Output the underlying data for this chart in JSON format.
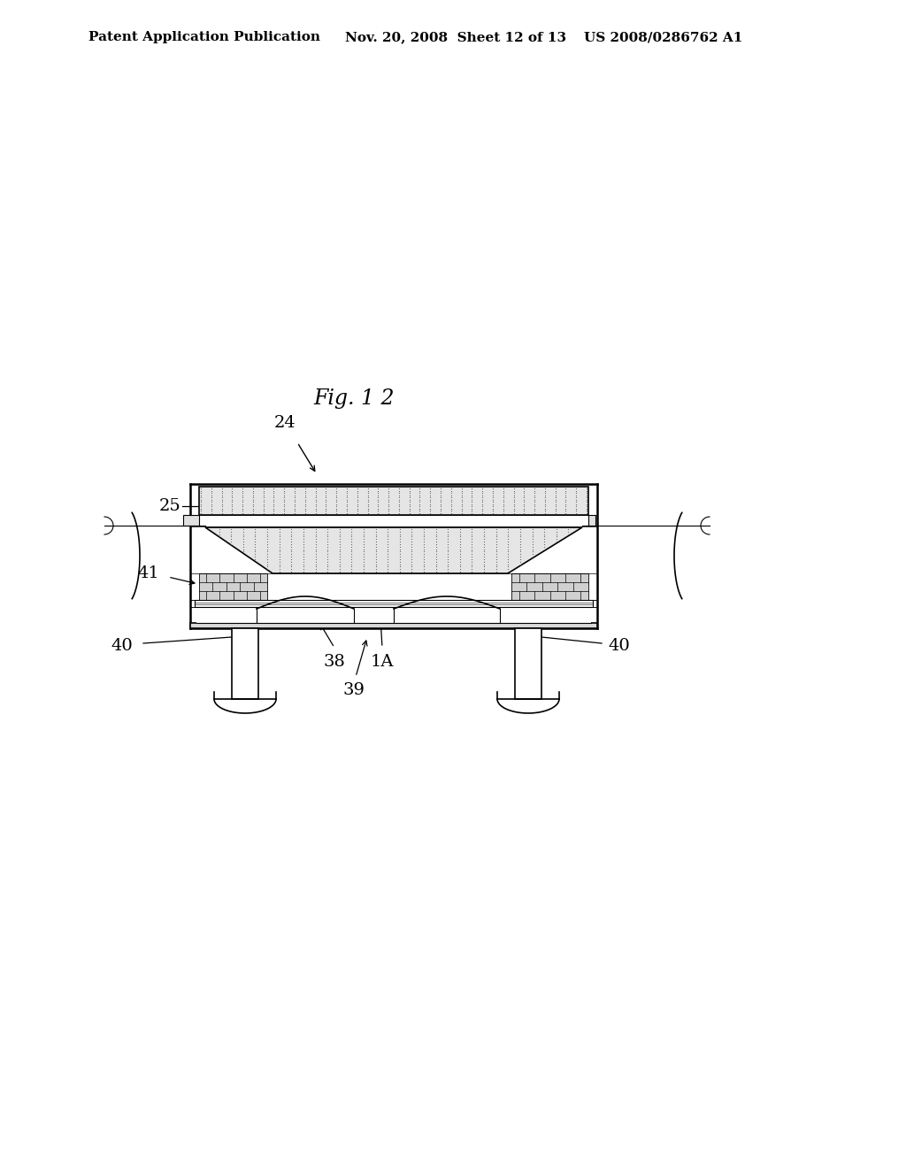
{
  "bg_color": "#ffffff",
  "header_left": "Patent Application Publication",
  "header_mid": "Nov. 20, 2008  Sheet 12 of 13",
  "header_right": "US 2008/0286762 A1",
  "fig_label": "Fig. 1 2"
}
